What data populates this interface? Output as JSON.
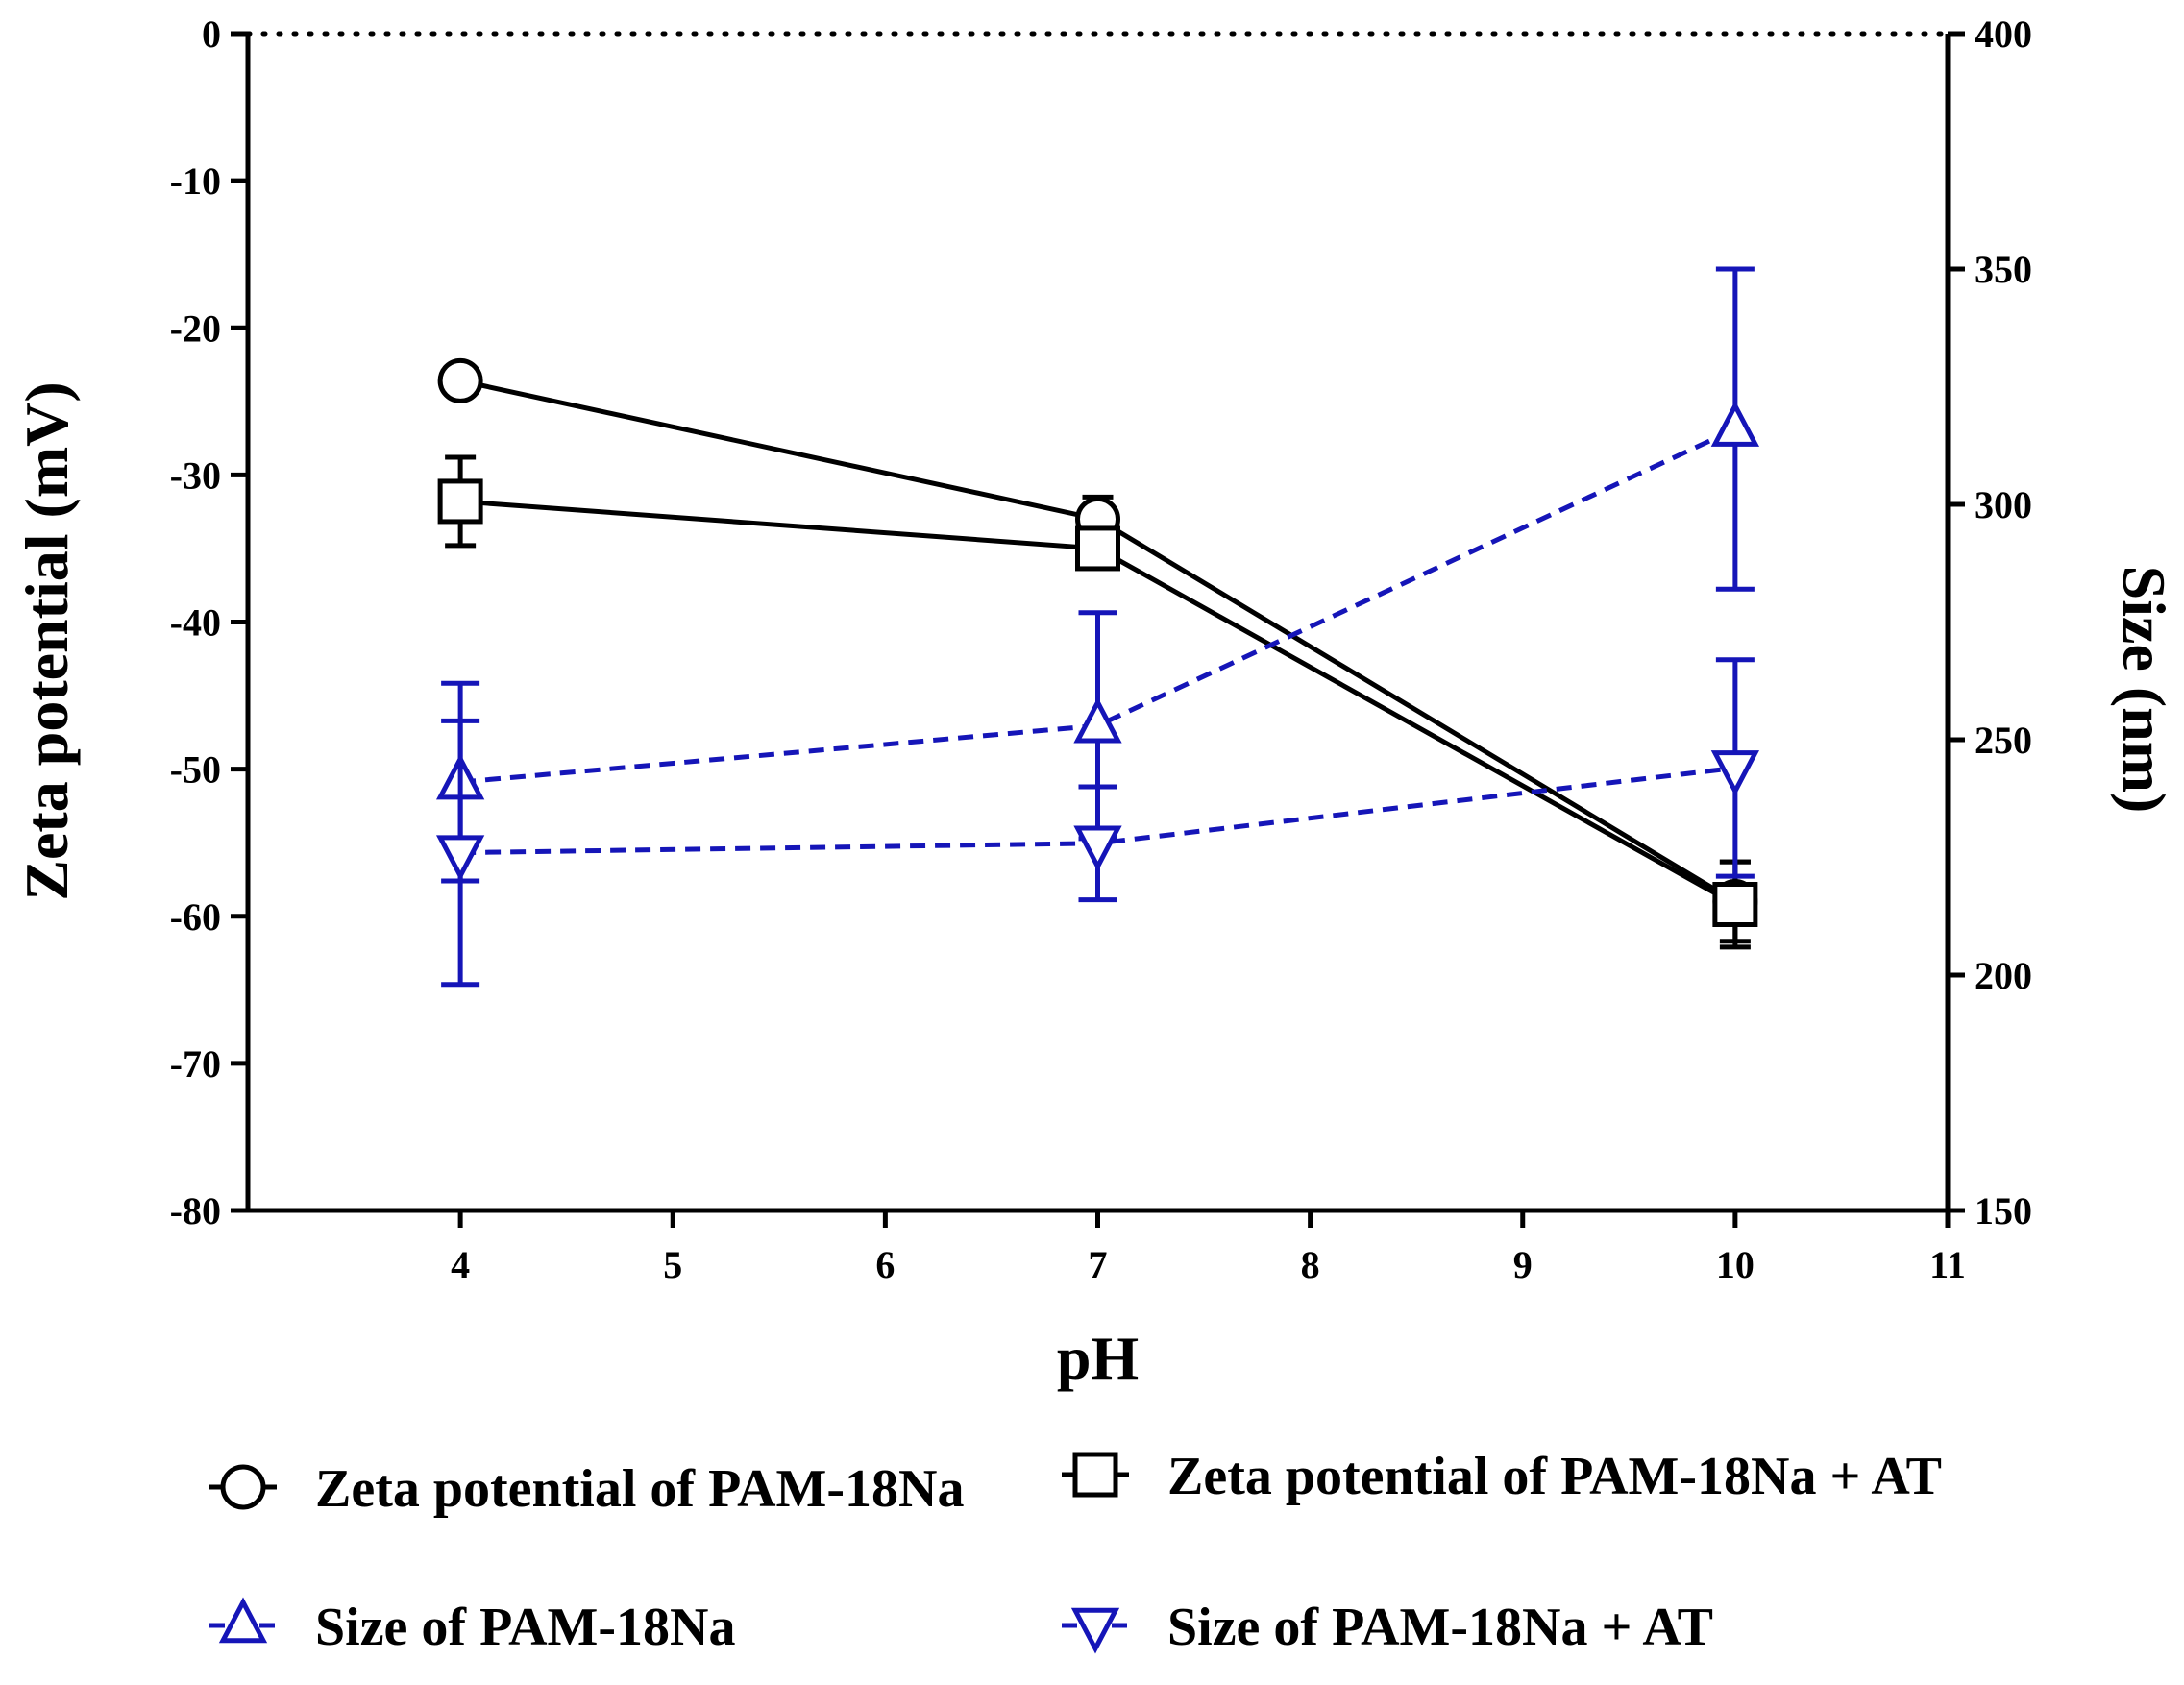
{
  "chart_data": {
    "type": "line",
    "xlabel": "pH",
    "ylabel": "Zeta potential (mV)",
    "y2label": "Size (nm)",
    "xlim": [
      3,
      11
    ],
    "ylim": [
      -80,
      0
    ],
    "y2lim": [
      150,
      400
    ],
    "xticks": [
      4,
      5,
      6,
      7,
      8,
      9,
      10,
      11
    ],
    "yticks": [
      0,
      -10,
      -20,
      -30,
      -40,
      -50,
      -60,
      -70,
      -80
    ],
    "y2ticks": [
      400,
      350,
      300,
      250,
      200,
      150
    ],
    "reference_line": {
      "y": 0,
      "style": "dotted"
    },
    "legend_position": "bottom",
    "series": [
      {
        "name": "Zeta potential of PAM-18Na",
        "axis": "left",
        "marker": "circle",
        "line": "solid",
        "color": "#000000",
        "x": [
          4,
          7,
          10
        ],
        "values": [
          -23.6,
          -33.0,
          -59.0
        ],
        "error": [
          0,
          1.5,
          2.7
        ]
      },
      {
        "name": "Zeta potential of PAM-18Na + AT",
        "axis": "left",
        "marker": "square",
        "line": "solid",
        "color": "#000000",
        "x": [
          4,
          7,
          10
        ],
        "values": [
          -31.8,
          -35.0,
          -59.2
        ],
        "error": [
          3.0,
          0,
          2.9
        ]
      },
      {
        "name": "Size of PAM-18Na",
        "axis": "right",
        "marker": "triangle-up",
        "line": "dashed",
        "color": "#1515b8",
        "x": [
          4,
          7,
          10
        ],
        "values": [
          241,
          253,
          316
        ],
        "error": [
          21,
          24,
          34
        ]
      },
      {
        "name": "Size of PAM-18Na + AT",
        "axis": "right",
        "marker": "triangle-down",
        "line": "dashed",
        "color": "#1515b8",
        "x": [
          4,
          7,
          10
        ],
        "values": [
          226,
          228,
          244
        ],
        "error": [
          28,
          12,
          23
        ]
      }
    ]
  }
}
